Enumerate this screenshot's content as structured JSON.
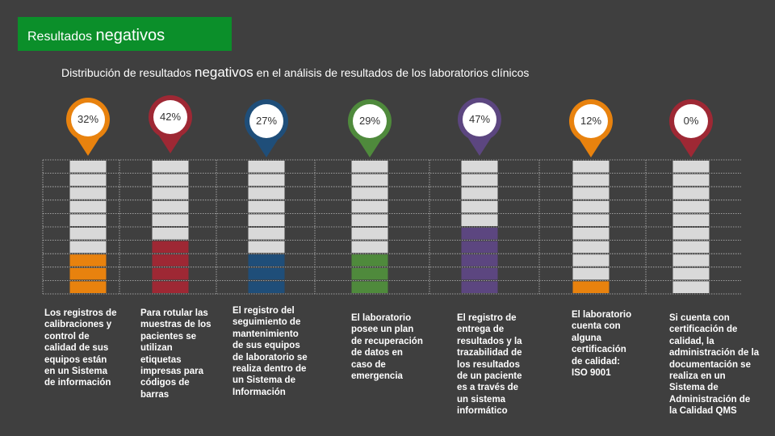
{
  "header": {
    "title_part1": "Resultados",
    "title_part2": "negativos",
    "subtitle_part1": "Distribución de resultados",
    "subtitle_part2": "negativos",
    "subtitle_part3": "en el análisis de resultados de los laboratorios clínicos"
  },
  "chart_data": {
    "type": "bar",
    "title": "Distribución de resultados negativos en el análisis de resultados de los laboratorios clínicos",
    "unit": "%",
    "ylim": [
      0,
      100
    ],
    "categories": [
      "Los registros de calibraciones y control de calidad de sus equipos están en un Sistema de información",
      "Para rotular las muestras de los pacientes se utilizan etiquetas impresas para códigos de barras",
      "El registro del seguimiento de mantenimiento de sus equipos de laboratorio se realiza dentro de un Sistema de Información",
      "El laboratorio posee un plan de recuperación de datos en caso de emergencia",
      "El registro de entrega de resultados y la trazabilidad de los resultados de un paciente es a través de un sistema informático",
      "El laboratorio cuenta con alguna certificación de calidad: ISO 9001",
      "Si cuenta con certificación de calidad, la administración de la documentación se realiza en un Sistema de Administración de la Calidad QMS"
    ],
    "values": [
      32,
      42,
      27,
      29,
      47,
      12,
      0
    ],
    "labels": [
      "32%",
      "42%",
      "27%",
      "29%",
      "47%",
      "12%",
      "0%"
    ],
    "colors": [
      "#e8820e",
      "#9e2834",
      "#1f4e79",
      "#4f8a3c",
      "#5c4680",
      "#e8820e",
      "#9e2834"
    ]
  }
}
